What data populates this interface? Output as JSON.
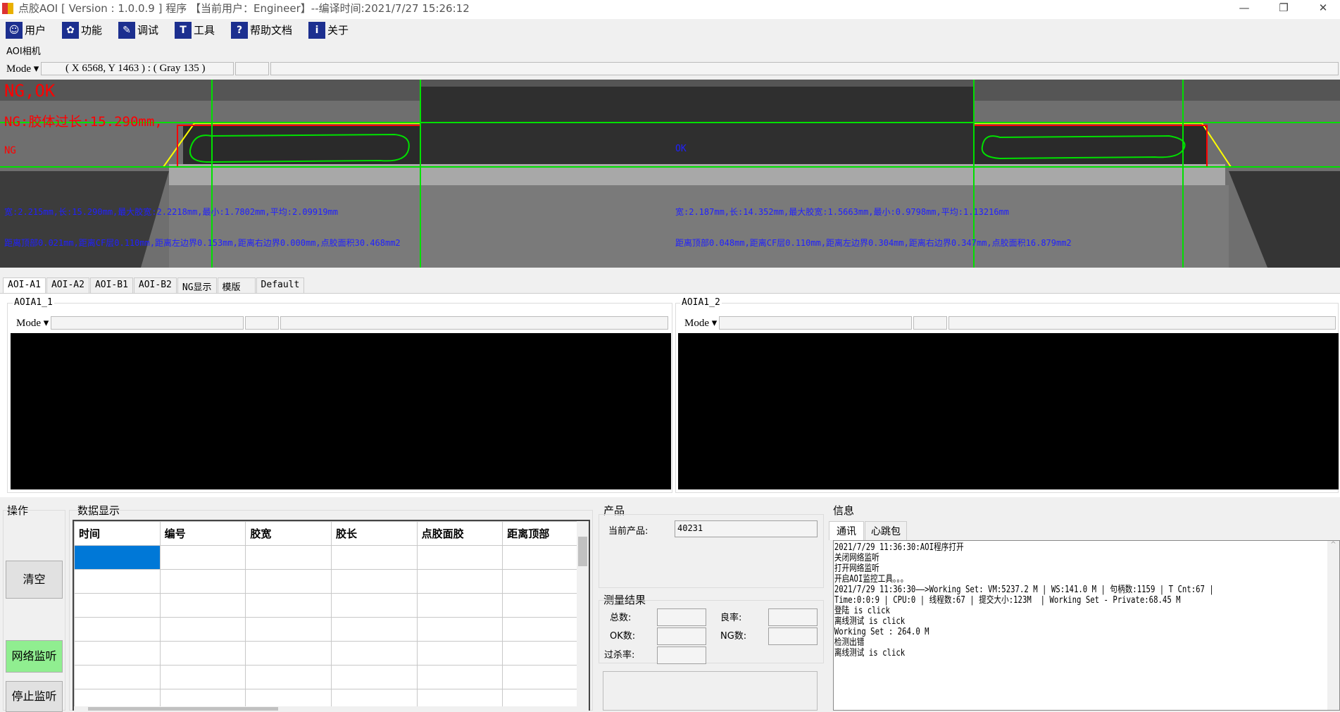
{
  "window": {
    "title": "点胶AOI [ Version : 1.0.0.9 ]  程序 【当前用户：Engineer】--编译时间:2021/7/27 15:26:12",
    "minimize": "—",
    "restore": "❐",
    "close": "✕"
  },
  "toolbar": [
    {
      "icon": "user-icon",
      "glyph": "☺",
      "label": "用户"
    },
    {
      "icon": "gear-icon",
      "glyph": "✿",
      "label": "功能"
    },
    {
      "icon": "debug-icon",
      "glyph": "✎",
      "label": "调试"
    },
    {
      "icon": "hammer-icon",
      "glyph": "T",
      "label": "工具"
    },
    {
      "icon": "help-icon",
      "glyph": "?",
      "label": "帮助文档"
    },
    {
      "icon": "info-icon",
      "glyph": "i",
      "label": "关于"
    }
  ],
  "camera": {
    "section_label": "AOI相机",
    "mode": "Mode ▾",
    "coords": "( X 6568, Y 1463 ) : ( Gray 135 )",
    "result": "NG,OK",
    "ng_reason": "NG:胶体过长:15.290mm,",
    "left_status": "NG",
    "right_status": "OK",
    "left_line1": "宽:2.215mm,长:15.290mm,最大胶宽:2.2218mm,最小:1.7802mm,平均:2.09919mm",
    "left_line2": "距离顶部0.021mm,距离CF层0.110mm,距离左边界0.153mm,距离右边界0.000mm,点胶面积30.468mm2",
    "right_line1": "宽:2.187mm,长:14.352mm,最大胶宽:1.5663mm,最小:0.9798mm,平均:1.13216mm",
    "right_line2": "距离顶部0.048mm,距离CF层0.110mm,距离左边界0.304mm,距离右边界0.347mm,点胶面积16.879mm2",
    "colors": {
      "ok_line": "#00e000",
      "ng_box": "#ff0000",
      "roi": "#ffff00",
      "text_blue": "#2020ff",
      "text_red": "#ff0000"
    }
  },
  "tabs": [
    "AOI-A1",
    "AOI-A2",
    "AOI-B1",
    "AOI-B2",
    "NG显示",
    "模版",
    "Default"
  ],
  "views": [
    {
      "title": "AOIA1_1",
      "mode": "Mode ▾"
    },
    {
      "title": "AOIA1_2",
      "mode": "Mode ▾"
    }
  ],
  "operations": {
    "title": "操作",
    "clear": "清空",
    "listen": "网络监听",
    "stop": "停止监听",
    "listen_color": "#90ee90"
  },
  "data_display": {
    "title": "数据显示",
    "columns": [
      "时间",
      "编号",
      "胶宽",
      "胶长",
      "点胶面胶",
      "距离顶部"
    ],
    "selected_color": "#0078d7"
  },
  "product": {
    "title": "产品",
    "current_label": "当前产品:",
    "current_value": "40231"
  },
  "measure": {
    "title": "测量结果",
    "total": "总数:",
    "yield": "良率:",
    "ok": "OK数:",
    "ng": "NG数:",
    "overkill": "过杀率:"
  },
  "info": {
    "title": "信息",
    "tabs": [
      "通讯",
      "心跳包"
    ],
    "log": [
      "2021/7/29 11:36:30:AOI程序打开",
      "关闭网络监听",
      "打开网络监听",
      "开启AOI监控工具。。。",
      "2021/7/29 11:36:30——>Working Set: VM:5237.2 M | WS:141.0 M | 句柄数:1159 | T Cnt:67 |",
      "Time:0:0:9 | CPU:0 | 线程数:67 | 提交大小:123M  | Working Set - Private:68.45 M",
      "登陆 is click",
      "离线测试 is click",
      "Working Set : 264.0 M",
      "检测出错",
      "离线测试 is click"
    ]
  }
}
